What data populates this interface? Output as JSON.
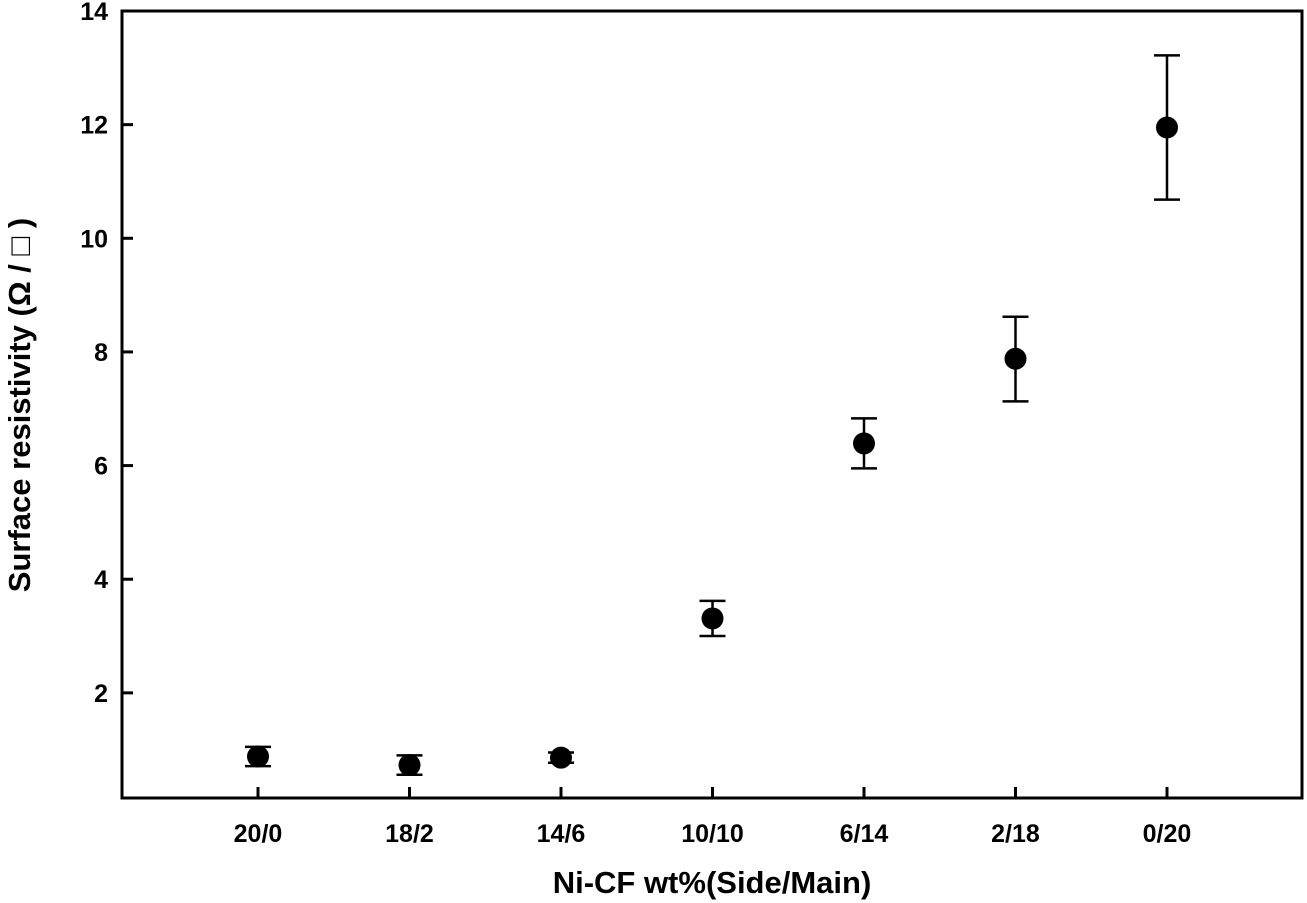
{
  "chart_data": {
    "type": "scatter",
    "title": "",
    "xlabel": "Ni-CF wt%(Side/Main)",
    "ylabel": "Surface resistivity (Ω  / □ )",
    "categories": [
      "20/0",
      "18/2",
      "14/6",
      "10/10",
      "6/14",
      "2/18",
      "0/20"
    ],
    "series": [
      {
        "values": [
          0.88,
          0.73,
          0.86,
          3.31,
          6.39,
          7.88,
          11.95
        ],
        "error_low": [
          0.71,
          0.56,
          0.77,
          3.0,
          5.95,
          7.13,
          10.68
        ],
        "error_high": [
          1.05,
          0.9,
          0.95,
          3.62,
          6.83,
          8.62,
          13.22
        ]
      }
    ],
    "ylim": [
      0.15,
      14
    ],
    "yticks": [
      2,
      4,
      6,
      8,
      10,
      12,
      14
    ],
    "ytick_labels": [
      "2",
      "4",
      "6",
      "8",
      "10",
      "12",
      "14"
    ],
    "grid": false,
    "marker_color": "#000000"
  }
}
